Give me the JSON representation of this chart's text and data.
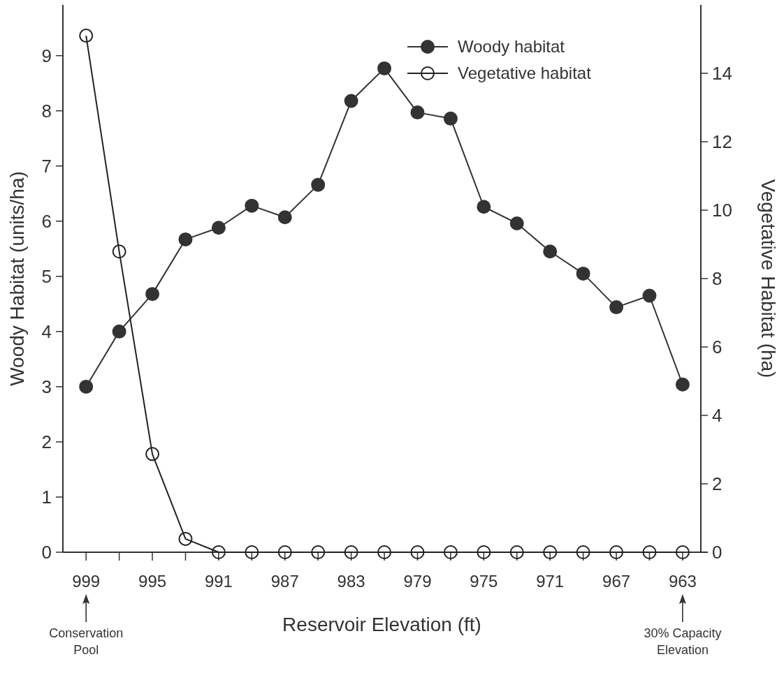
{
  "chart_data": {
    "type": "line",
    "xlabel": "Reservoir Elevation (ft)",
    "ylabel": "Woody Habitat (units/ha)",
    "y2label": "Vegetative Habitat (ha)",
    "x": [
      999,
      997,
      995,
      993,
      991,
      989,
      987,
      985,
      983,
      981,
      979,
      977,
      975,
      973,
      971,
      969,
      967,
      965,
      963
    ],
    "series": [
      {
        "name": "Woody habitat",
        "color": "#333333",
        "values": [
          3.0,
          4.0,
          4.68,
          5.67,
          5.88,
          6.28,
          6.07,
          6.66,
          8.18,
          8.77,
          7.97,
          7.86,
          6.26,
          5.96,
          5.45,
          5.05,
          4.44,
          4.65,
          3.04
        ]
      },
      {
        "name": "Vegetative habitat",
        "color": "#222222",
        "axis": "y2",
        "values": [
          15.1,
          8.79,
          2.87,
          0.39,
          0,
          0,
          0,
          0,
          0,
          0,
          0,
          0,
          0,
          0,
          0,
          0,
          0,
          0,
          0
        ]
      }
    ],
    "xlim": [
      1000.4,
      961.9
    ],
    "xticks": [
      999,
      {
        "value": 997,
        "label": null
      },
      995,
      {
        "value": 993,
        "label": null
      },
      991,
      {
        "value": 989,
        "label": null
      },
      987,
      {
        "value": 985,
        "label": null
      },
      983,
      {
        "value": 981,
        "label": null
      },
      979,
      {
        "value": 977,
        "label": null
      },
      975,
      {
        "value": 973,
        "label": null
      },
      971,
      {
        "value": 969,
        "label": null
      },
      967,
      {
        "value": 965,
        "label": null
      },
      963
    ],
    "ylim": [
      0,
      9.92
    ],
    "yticks": [
      0,
      1,
      2,
      3,
      4,
      5,
      6,
      7,
      8,
      9
    ],
    "y2lim": [
      0,
      16
    ],
    "y2ticks": [
      0,
      2,
      4,
      6,
      8,
      10,
      12,
      14
    ],
    "marker": "circle",
    "line_style": "solid",
    "grid": false,
    "legend": "top right",
    "annotations": [
      "Conservation\nPool",
      "30% Capacity\nElevation"
    ]
  }
}
